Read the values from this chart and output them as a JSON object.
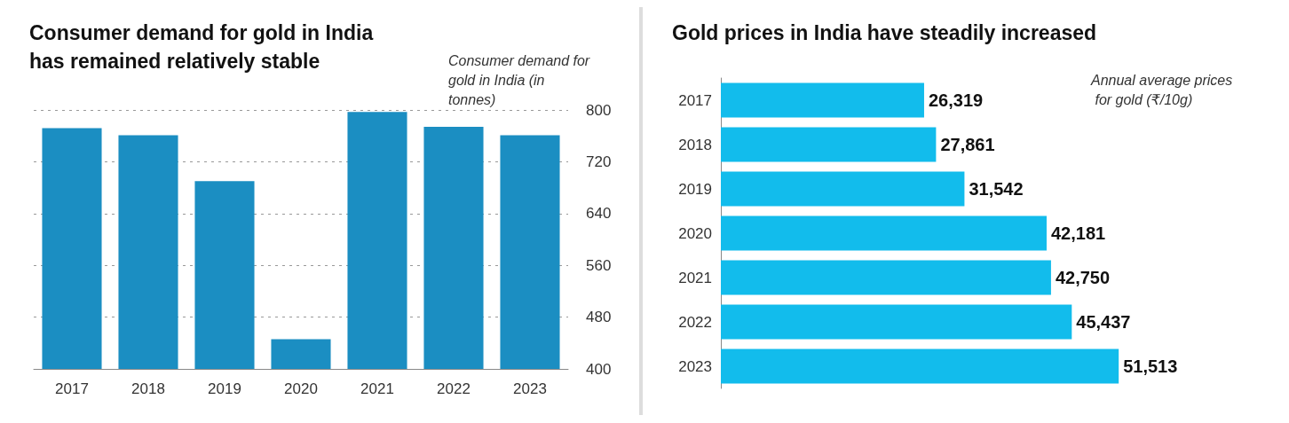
{
  "chart_data": [
    {
      "type": "bar",
      "title": "Consumer demand for gold in India has remained relatively stable",
      "ylabel": "Consumer demand for gold in India (in tonnes)",
      "categories": [
        "2017",
        "2018",
        "2019",
        "2020",
        "2021",
        "2022",
        "2023"
      ],
      "values": [
        772,
        761,
        690,
        446,
        797,
        774,
        761
      ],
      "color": "#1b8ec2",
      "ylim": [
        400,
        800
      ],
      "yticks": [
        400,
        480,
        560,
        640,
        720,
        800
      ],
      "grid": "y"
    },
    {
      "type": "bar",
      "orientation": "horizontal",
      "tick_labels": "y",
      "title": "Gold prices in India have steadily increased",
      "xlabel": "Annual average prices for gold (₹/10g)",
      "categories": [
        "2017",
        "2018",
        "2019",
        "2020",
        "2021",
        "2022",
        "2023"
      ],
      "values": [
        26319,
        27861,
        31542,
        42181,
        42750,
        45437,
        51513
      ],
      "value_labels": [
        "26,319",
        "27,861",
        "31,542",
        "42,181",
        "42,750",
        "45,437",
        "51,513"
      ],
      "color": "#12bcec"
    }
  ]
}
